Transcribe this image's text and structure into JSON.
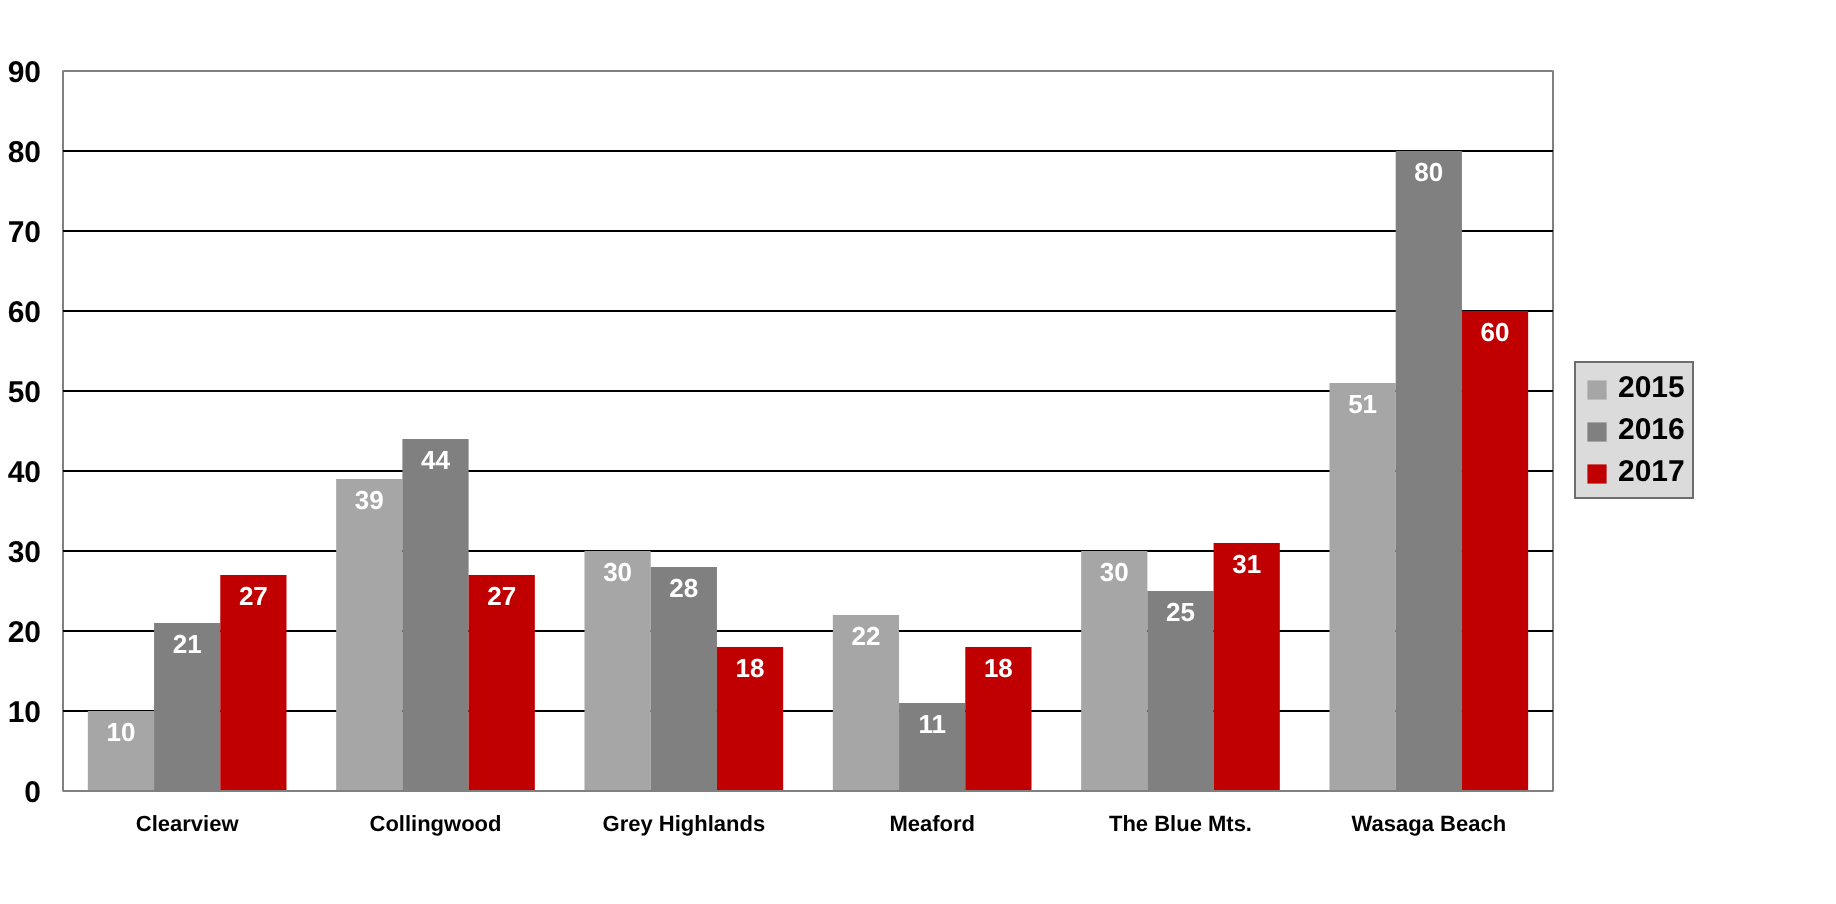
{
  "chart_data": {
    "type": "bar",
    "categories": [
      "Clearview",
      "Collingwood",
      "Grey Highlands",
      "Meaford",
      "The Blue Mts.",
      "Wasaga Beach"
    ],
    "series": [
      {
        "name": "2015",
        "color": "#a6a6a6",
        "values": [
          10,
          39,
          30,
          22,
          30,
          51
        ]
      },
      {
        "name": "2016",
        "color": "#808080",
        "values": [
          21,
          44,
          28,
          11,
          25,
          80
        ]
      },
      {
        "name": "2017",
        "color": "#c00000",
        "values": [
          27,
          27,
          18,
          18,
          31,
          60
        ]
      }
    ],
    "ylim": [
      0,
      90
    ],
    "yticks": [
      0,
      10,
      20,
      30,
      40,
      50,
      60,
      70,
      80,
      90
    ],
    "grid": "y",
    "legend": "right",
    "data_labels": true
  }
}
